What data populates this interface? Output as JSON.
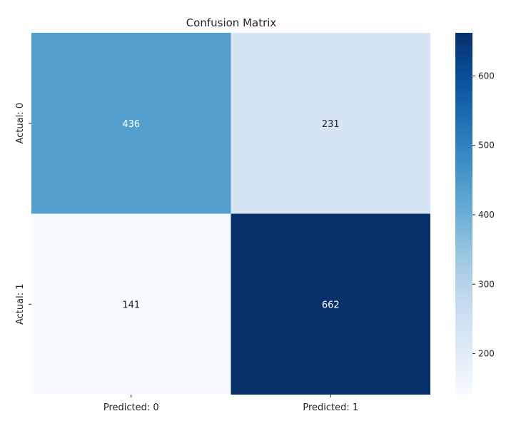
{
  "chart_data": {
    "type": "heatmap",
    "title": "Confusion Matrix",
    "xlabel": "",
    "ylabel": "",
    "x_categories": [
      "Predicted: 0",
      "Predicted: 1"
    ],
    "y_categories": [
      "Actual: 0",
      "Actual: 1"
    ],
    "values": [
      [
        436,
        231
      ],
      [
        141,
        662
      ]
    ],
    "colormap": "Blues",
    "color_range": [
      141,
      662
    ],
    "colorbar_ticks": [
      200,
      300,
      400,
      500,
      600
    ],
    "grid": false
  }
}
